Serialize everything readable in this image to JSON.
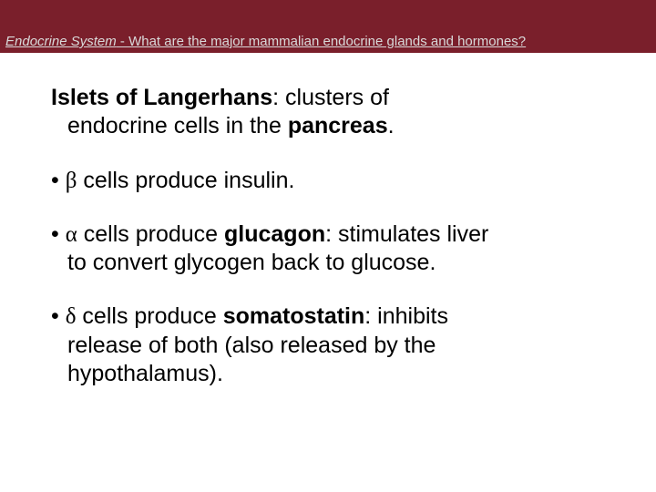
{
  "header": {
    "section_italic": "Endocrine System",
    "question": " - What are the major mammalian endocrine glands and hormones?"
  },
  "intro": {
    "term": "Islets of Langerhans",
    "desc_before": ": clusters of",
    "line2_before": "endocrine cells in the ",
    "organ": "pancreas",
    "line2_after": "."
  },
  "bullets": [
    {
      "prefix": "• ",
      "greek": "β",
      "rest": " cells produce insulin."
    },
    {
      "prefix": "• ",
      "greek": "α",
      "mid": " cells produce ",
      "bold": "glucagon",
      "after": ": stimulates liver",
      "cont": "to convert glycogen back to glucose."
    },
    {
      "prefix": "• ",
      "greek": "δ",
      "mid": " cells produce ",
      "bold": "somatostatin",
      "after": ": inhibits",
      "cont1": "release of both (also released by the",
      "cont2": "hypothalamus)."
    }
  ],
  "colors": {
    "header_bg": "#7a1f2b",
    "header_text": "#d9d9d9",
    "body_text": "#000000",
    "page_bg": "#ffffff"
  }
}
